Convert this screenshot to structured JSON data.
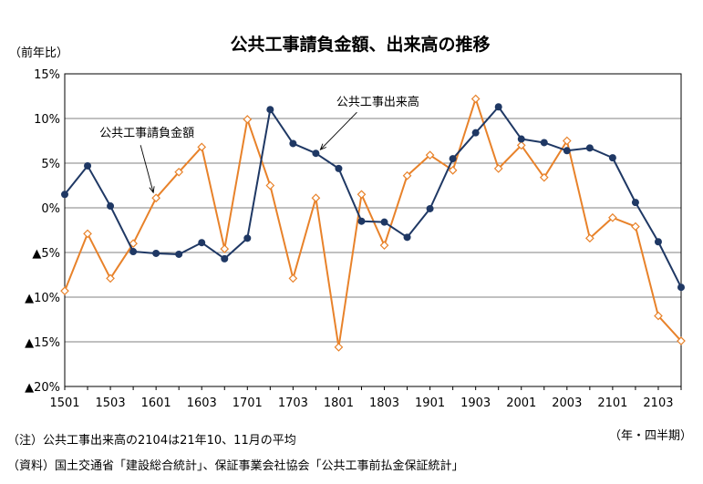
{
  "chart_data": {
    "type": "line",
    "title": "公共工事請負金額、出来高の推移",
    "ylabel": "（前年比）",
    "xlabel": "（年・四半期）",
    "ylim": [
      -20,
      15
    ],
    "yticks": [
      {
        "value": 15,
        "label": "15%"
      },
      {
        "value": 10,
        "label": "10%"
      },
      {
        "value": 5,
        "label": "5%"
      },
      {
        "value": 0,
        "label": "0%"
      },
      {
        "value": -5,
        "label": "▲5%"
      },
      {
        "value": -10,
        "label": "▲10%"
      },
      {
        "value": -15,
        "label": "▲15%"
      },
      {
        "value": -20,
        "label": "▲20%"
      }
    ],
    "x": [
      "1501",
      "1502",
      "1503",
      "1504",
      "1601",
      "1602",
      "1603",
      "1604",
      "1701",
      "1702",
      "1703",
      "1704",
      "1801",
      "1802",
      "1803",
      "1804",
      "1901",
      "1902",
      "1903",
      "1904",
      "2001",
      "2002",
      "2003",
      "2004",
      "2101",
      "2102",
      "2103",
      "2104"
    ],
    "xtick_labels": [
      "1501",
      "1503",
      "1601",
      "1603",
      "1701",
      "1703",
      "1801",
      "1803",
      "1901",
      "1903",
      "2001",
      "2003",
      "2101",
      "2103"
    ],
    "grid": true,
    "series": [
      {
        "name": "公共工事請負金額",
        "color": "#E8822A",
        "marker": "open-diamond",
        "values": [
          -9.3,
          -2.9,
          -7.9,
          -4.0,
          1.1,
          4.0,
          6.8,
          -4.6,
          9.9,
          2.5,
          -7.9,
          1.1,
          -15.6,
          1.5,
          -4.2,
          3.6,
          5.9,
          4.2,
          12.2,
          4.4,
          7.0,
          3.4,
          7.5,
          -3.4,
          -1.1,
          -2.1,
          -12.1,
          -14.9
        ]
      },
      {
        "name": "公共工事出来高",
        "color": "#1F3864",
        "marker": "filled-circle",
        "values": [
          1.5,
          4.7,
          0.2,
          -4.9,
          -5.1,
          -5.2,
          -3.9,
          -5.7,
          -3.4,
          11.0,
          7.2,
          6.1,
          4.4,
          -1.5,
          -1.6,
          -3.3,
          -0.1,
          5.5,
          8.4,
          11.3,
          7.7,
          7.3,
          6.4,
          6.7,
          5.6,
          0.6,
          -3.8,
          -8.9
        ]
      }
    ],
    "annotations": [
      {
        "text": "公共工事請負金額",
        "series": 0,
        "point": 4
      },
      {
        "text": "公共工事出来高",
        "series": 1,
        "point": 11
      }
    ]
  },
  "notes": [
    "（注）公共工事出来高の2104は21年10、11月の平均",
    "（資料）国土交通省「建設総合統計」、保証事業会社協会「公共工事前払金保証統計」"
  ]
}
